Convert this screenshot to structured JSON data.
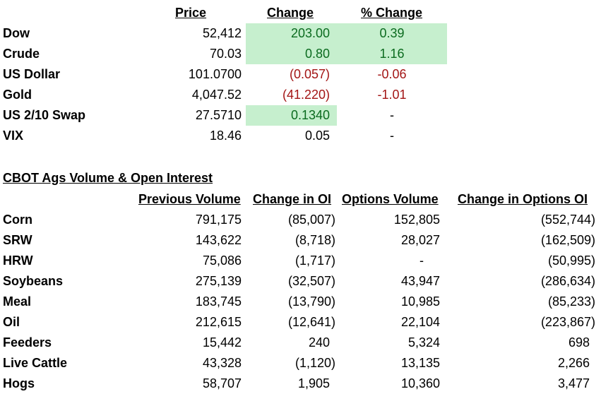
{
  "markets": {
    "headers": {
      "price": "Price",
      "change": "Change",
      "pct": "% Change"
    },
    "rows": [
      {
        "name": "Dow",
        "price": "52,412",
        "change": "203.00",
        "pct": "0.39"
      },
      {
        "name": "Crude",
        "price": "70.03",
        "change": "0.80",
        "pct": "1.16"
      },
      {
        "name": "US Dollar",
        "price": "101.0700",
        "change": "(0.057)",
        "pct": "-0.06"
      },
      {
        "name": "Gold",
        "price": "4,047.52",
        "change": "(41.220)",
        "pct": "-1.01"
      },
      {
        "name": "US 2/10 Swap",
        "price": "27.5710",
        "change": "0.1340",
        "pct": "-"
      },
      {
        "name": "VIX",
        "price": "18.46",
        "change": "0.05",
        "pct": "-"
      }
    ],
    "colors": {
      "positive": "#0b6b1f",
      "negative": "#a31515",
      "highlight": "#c6efce"
    }
  },
  "cbot": {
    "title": "CBOT Ags Volume & Open Interest",
    "headers": {
      "prev_volume": "Previous Volume",
      "change_oi": "Change in OI",
      "options_volume": "Options Volume",
      "change_options_oi": "Change in Options OI"
    },
    "rows": [
      {
        "name": "Corn",
        "prev_volume": "791,175",
        "change_oi": "(85,007)",
        "options_volume": "152,805",
        "change_options_oi": "(552,744)"
      },
      {
        "name": "SRW",
        "prev_volume": "143,622",
        "change_oi": "(8,718)",
        "options_volume": "28,027",
        "change_options_oi": "(162,509)"
      },
      {
        "name": "HRW",
        "prev_volume": "75,086",
        "change_oi": "(1,717)",
        "options_volume": "-",
        "change_options_oi": "(50,995)"
      },
      {
        "name": "Soybeans",
        "prev_volume": "275,139",
        "change_oi": "(32,507)",
        "options_volume": "43,947",
        "change_options_oi": "(286,634)"
      },
      {
        "name": "Meal",
        "prev_volume": "183,745",
        "change_oi": "(13,790)",
        "options_volume": "10,985",
        "change_options_oi": "(85,233)"
      },
      {
        "name": "Oil",
        "prev_volume": "212,615",
        "change_oi": "(12,641)",
        "options_volume": "22,104",
        "change_options_oi": "(223,867)"
      },
      {
        "name": "Feeders",
        "prev_volume": "15,442",
        "change_oi": "240",
        "options_volume": "5,324",
        "change_options_oi": "698"
      },
      {
        "name": "Live Cattle",
        "prev_volume": "43,328",
        "change_oi": "(1,120)",
        "options_volume": "13,135",
        "change_options_oi": "2,266"
      },
      {
        "name": "Hogs",
        "prev_volume": "58,707",
        "change_oi": "1,905",
        "options_volume": "10,360",
        "change_options_oi": "3,477"
      }
    ]
  }
}
